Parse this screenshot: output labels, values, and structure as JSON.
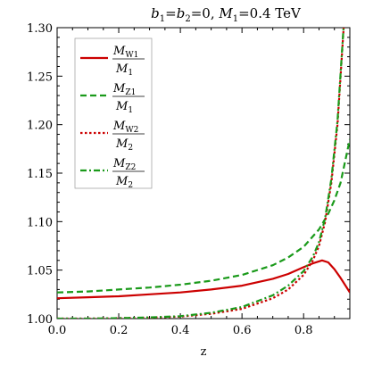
{
  "chart_data": {
    "type": "line",
    "title": {
      "b_symbol": "b",
      "b1_sub": "1",
      "b2_sub": "2",
      "b_value": "=0, ",
      "m_symbol": "M",
      "m1_sub": "1",
      "m_value": "=0.4 TeV"
    },
    "xlabel": "z",
    "ylabel": "",
    "xlim": [
      0.0,
      0.95
    ],
    "ylim": [
      1.0,
      1.3
    ],
    "x_ticks": [
      "0.0",
      "0.2",
      "0.4",
      "0.6",
      "0.8"
    ],
    "x_tick_values": [
      0.0,
      0.2,
      0.4,
      0.6,
      0.8
    ],
    "y_ticks": [
      "1.00",
      "1.05",
      "1.10",
      "1.15",
      "1.20",
      "1.25",
      "1.30"
    ],
    "y_tick_values": [
      1.0,
      1.05,
      1.1,
      1.15,
      1.2,
      1.25,
      1.3
    ],
    "grid": false,
    "legend_position": "top-left",
    "series": [
      {
        "num_symbol": "M",
        "num_sub": "W1",
        "den_symbol": "M",
        "den_sub": "1",
        "color": "#cc0000",
        "dash": "solid",
        "x": [
          0.0,
          0.1,
          0.2,
          0.3,
          0.4,
          0.5,
          0.6,
          0.7,
          0.75,
          0.8,
          0.83,
          0.86,
          0.88,
          0.9,
          0.92,
          0.95
        ],
        "y": [
          1.021,
          1.022,
          1.023,
          1.025,
          1.027,
          1.03,
          1.034,
          1.041,
          1.046,
          1.053,
          1.057,
          1.06,
          1.058,
          1.051,
          1.042,
          1.027
        ]
      },
      {
        "num_symbol": "M",
        "num_sub": "Z1",
        "den_symbol": "M",
        "den_sub": "1",
        "color": "#1a9a1a",
        "dash": "dashed",
        "x": [
          0.0,
          0.1,
          0.2,
          0.3,
          0.4,
          0.5,
          0.6,
          0.7,
          0.75,
          0.8,
          0.85,
          0.88,
          0.9,
          0.92,
          0.95
        ],
        "y": [
          1.027,
          1.028,
          1.03,
          1.032,
          1.035,
          1.039,
          1.045,
          1.055,
          1.063,
          1.074,
          1.092,
          1.108,
          1.122,
          1.14,
          1.185
        ]
      },
      {
        "num_symbol": "M",
        "num_sub": "W2",
        "den_symbol": "M",
        "den_sub": "2",
        "color": "#cc0000",
        "dash": "dotted",
        "x": [
          0.0,
          0.1,
          0.2,
          0.3,
          0.4,
          0.5,
          0.6,
          0.7,
          0.75,
          0.8,
          0.83,
          0.85,
          0.87,
          0.89,
          0.91,
          0.93
        ],
        "y": [
          1.0,
          1.0,
          1.0005,
          1.001,
          1.002,
          1.005,
          1.01,
          1.021,
          1.03,
          1.045,
          1.06,
          1.075,
          1.1,
          1.14,
          1.2,
          1.3
        ]
      },
      {
        "num_symbol": "M",
        "num_sub": "Z2",
        "den_symbol": "M",
        "den_sub": "2",
        "color": "#1a9a1a",
        "dash": "dashdot",
        "x": [
          0.0,
          0.1,
          0.2,
          0.3,
          0.4,
          0.5,
          0.6,
          0.7,
          0.75,
          0.8,
          0.83,
          0.85,
          0.87,
          0.89,
          0.91,
          0.93
        ],
        "y": [
          1.0,
          1.0,
          1.0005,
          1.0012,
          1.0025,
          1.006,
          1.012,
          1.024,
          1.034,
          1.049,
          1.064,
          1.079,
          1.104,
          1.144,
          1.204,
          1.302
        ]
      }
    ]
  }
}
